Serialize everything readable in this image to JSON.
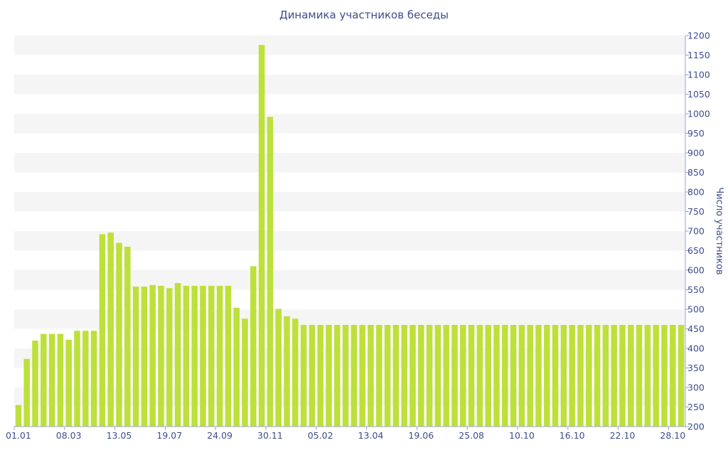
{
  "chart_data": {
    "type": "bar",
    "title": "Динамика участников беседы",
    "ylabel": "Число участников",
    "xlabel": "",
    "ylim": [
      200,
      1200
    ],
    "y_axis_side": "right",
    "yticks": [
      200,
      250,
      300,
      350,
      400,
      450,
      500,
      550,
      600,
      650,
      700,
      750,
      800,
      850,
      900,
      950,
      1000,
      1050,
      1100,
      1150,
      1200
    ],
    "x_tick_labels": [
      {
        "index": 0,
        "label": "01.01"
      },
      {
        "index": 6,
        "label": "08.03"
      },
      {
        "index": 12,
        "label": "13.05"
      },
      {
        "index": 18,
        "label": "19.07"
      },
      {
        "index": 24,
        "label": "24.09"
      },
      {
        "index": 30,
        "label": "30.11"
      },
      {
        "index": 36,
        "label": "05.02"
      },
      {
        "index": 42,
        "label": "13.04"
      },
      {
        "index": 48,
        "label": "19.06"
      },
      {
        "index": 54,
        "label": "25.08"
      },
      {
        "index": 60,
        "label": "10.10"
      },
      {
        "index": 66,
        "label": "16.10"
      },
      {
        "index": 72,
        "label": "22.10"
      },
      {
        "index": 78,
        "label": "28.10"
      }
    ],
    "values": [
      255,
      373,
      420,
      437,
      437,
      437,
      422,
      445,
      445,
      445,
      692,
      696,
      670,
      660,
      558,
      558,
      562,
      560,
      554,
      567,
      560,
      560,
      560,
      560,
      560,
      560,
      504,
      476,
      610,
      1176,
      992,
      501,
      482,
      476,
      460,
      460,
      460,
      460,
      460,
      460,
      460,
      460,
      460,
      460,
      460,
      460,
      460,
      460,
      460,
      460,
      460,
      460,
      460,
      460,
      460,
      460,
      460,
      460,
      460,
      460,
      460,
      460,
      460,
      460,
      460,
      460,
      460,
      460,
      460,
      460,
      460,
      460,
      460,
      460,
      460,
      460,
      460,
      460,
      460,
      460
    ],
    "bar_color": "#bde03a",
    "band_color": "#f5f5f5",
    "text_color": "#3d4d8c",
    "grid": "alternating horizontal bands"
  }
}
